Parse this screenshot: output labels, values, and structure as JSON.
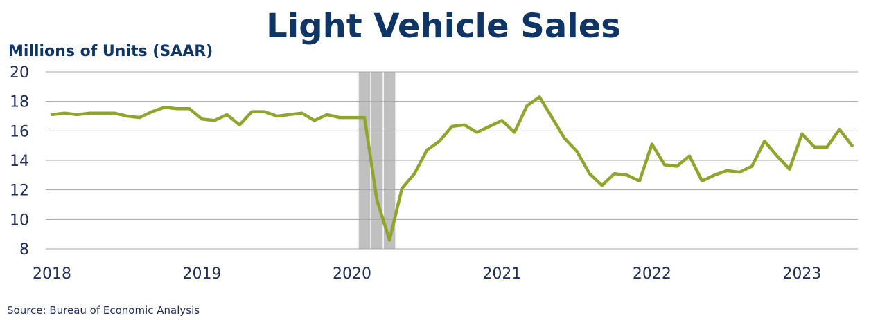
{
  "chart_data": {
    "type": "line",
    "title": "Light Vehicle Sales",
    "ylabel": "Millions of Units (SAAR)",
    "xlabel": "",
    "source": "Source:  Bureau of Economic Analysis",
    "ylim": [
      8,
      20
    ],
    "yticks": [
      "8",
      "10",
      "12",
      "14",
      "16",
      "18",
      "20"
    ],
    "xticks": [
      "2018",
      "2019",
      "2020",
      "2021",
      "2022",
      "2023"
    ],
    "grid": true,
    "recession_shading": {
      "start_month": 25,
      "end_month": 28,
      "color": "#c0c0c0"
    },
    "colors": {
      "title": "#0e3566",
      "line": "#8fa52c",
      "text": "#1f2d5a",
      "grid": "#a6a6a6"
    },
    "series": [
      {
        "start": "2018-01",
        "values": [
          17.1,
          17.2,
          17.1,
          17.2,
          17.2,
          17.2,
          17.0,
          16.9,
          17.3,
          17.6,
          17.5,
          17.5,
          16.8,
          16.7,
          17.1,
          16.4,
          17.3,
          17.3,
          17.0,
          17.1,
          17.2,
          16.7,
          17.1,
          16.9,
          16.9,
          16.9,
          11.3,
          8.6,
          12.1,
          13.1,
          14.7,
          15.3,
          16.3,
          16.4,
          15.9,
          16.3,
          16.7,
          15.9,
          17.7,
          18.3,
          16.9,
          15.5,
          14.6,
          13.1,
          12.3,
          13.1,
          13.0,
          12.6,
          15.1,
          13.7,
          13.6,
          14.3,
          12.6,
          13.0,
          13.3,
          13.2,
          13.6,
          15.3,
          14.3,
          13.4,
          15.8,
          14.9,
          14.9,
          16.1,
          15.0
        ]
      }
    ]
  }
}
